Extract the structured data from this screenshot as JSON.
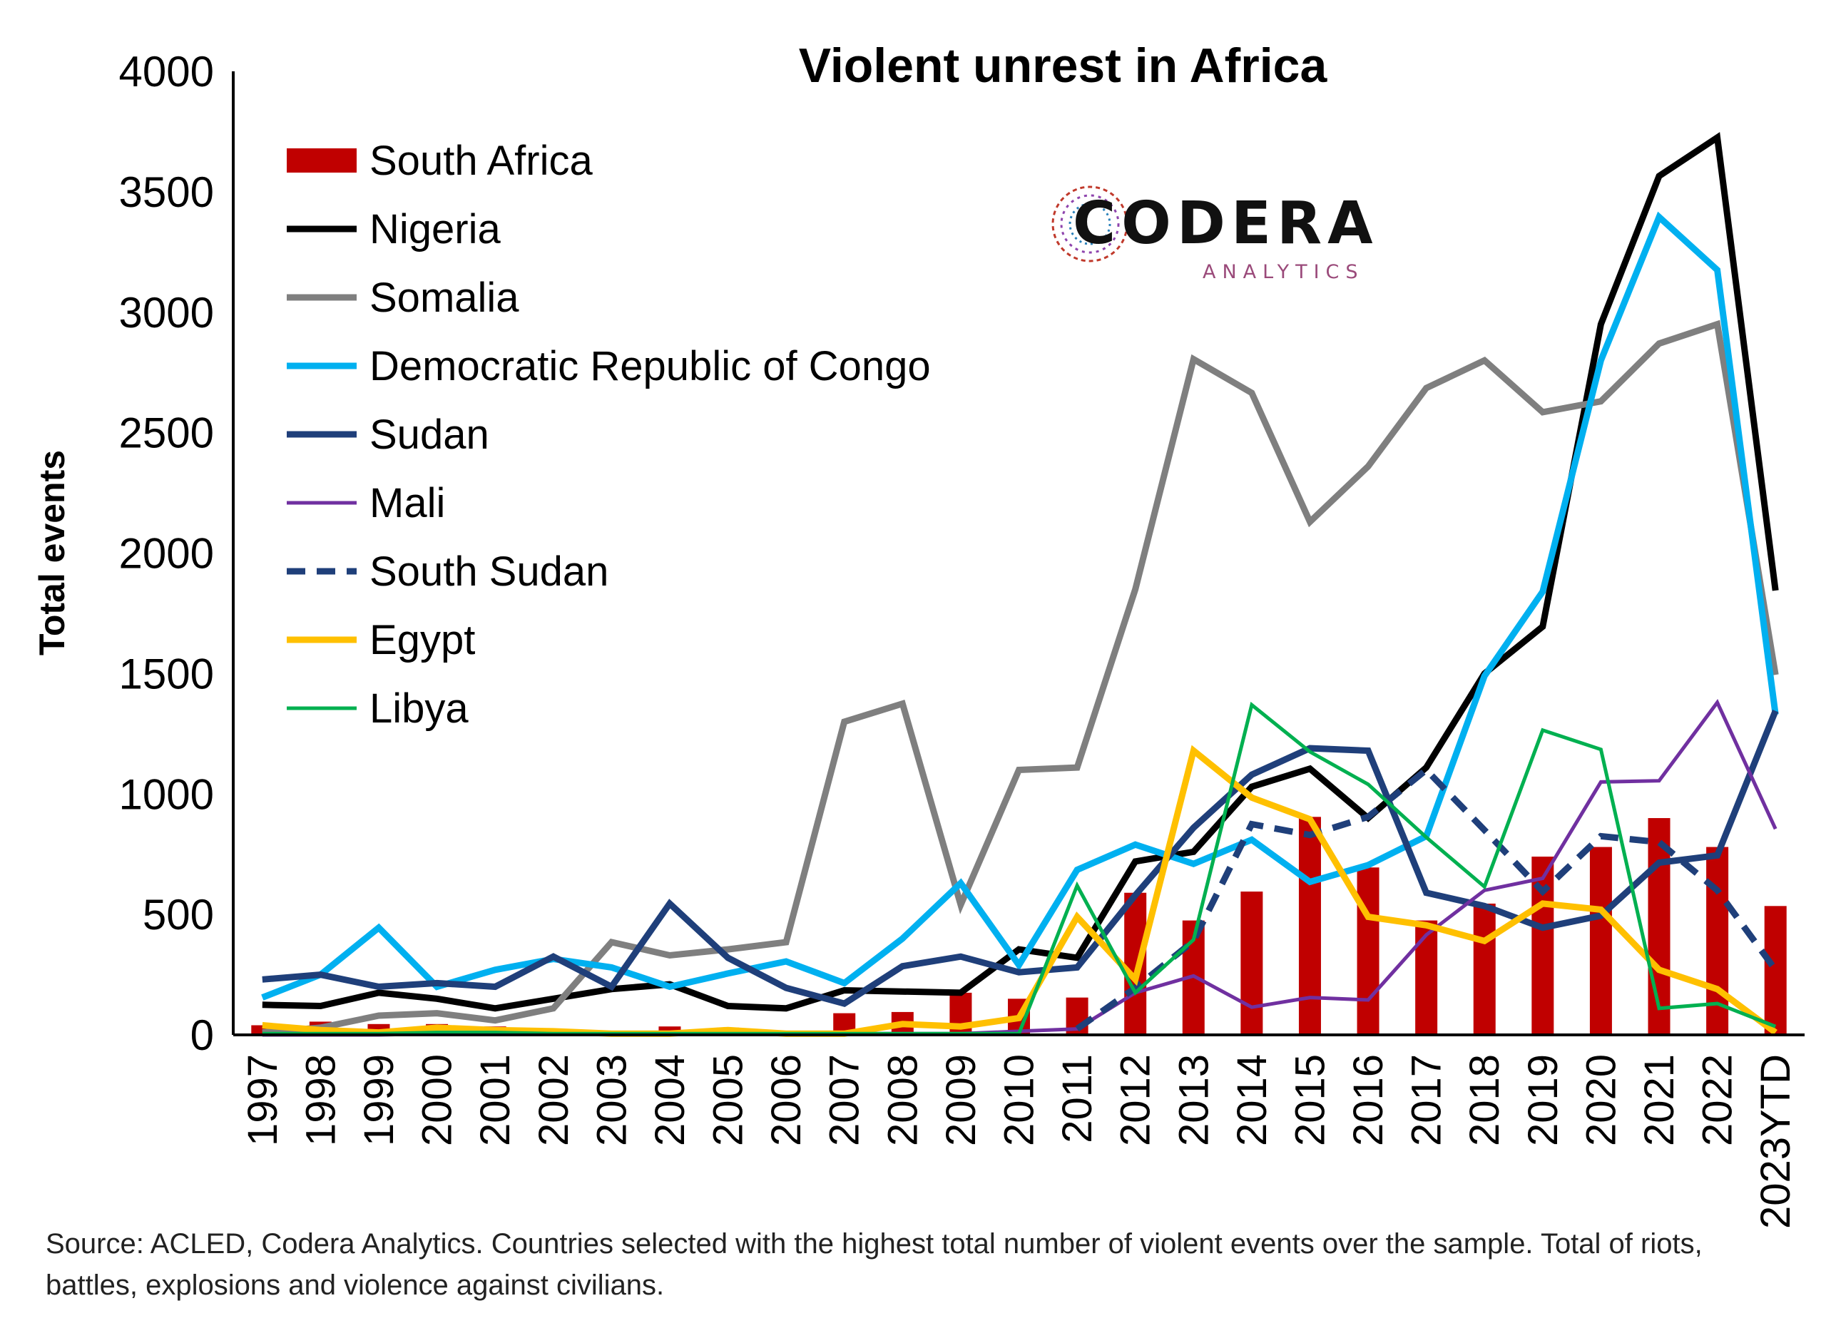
{
  "chart_data": {
    "type": "bar",
    "title": "Violent unrest in Africa",
    "ylabel": "Total events",
    "xlabel": "",
    "ylim": [
      0,
      4000
    ],
    "yticks": [
      0,
      500,
      1000,
      1500,
      2000,
      2500,
      3000,
      3500,
      4000
    ],
    "grid": false,
    "legend_position": "top-left",
    "categories": [
      "1997",
      "1998",
      "1999",
      "2000",
      "2001",
      "2002",
      "2003",
      "2004",
      "2005",
      "2006",
      "2007",
      "2008",
      "2009",
      "2010",
      "2011",
      "2012",
      "2013",
      "2014",
      "2015",
      "2016",
      "2017",
      "2018",
      "2019",
      "2020",
      "2021",
      "2022",
      "2023YTD"
    ],
    "series": [
      {
        "name": "South Africa",
        "type": "bar",
        "color": "#c00000",
        "style": "bar",
        "values": [
          40,
          55,
          45,
          45,
          35,
          25,
          10,
          35,
          30,
          5,
          90,
          95,
          175,
          150,
          155,
          590,
          475,
          595,
          905,
          695,
          475,
          545,
          740,
          780,
          900,
          780,
          535
        ]
      },
      {
        "name": "Nigeria",
        "type": "line",
        "color": "#000000",
        "style": "solid",
        "width": 9,
        "values": [
          125,
          120,
          175,
          150,
          110,
          150,
          190,
          210,
          120,
          110,
          185,
          180,
          175,
          355,
          320,
          720,
          760,
          1030,
          1105,
          900,
          1110,
          1500,
          1695,
          2950,
          3565,
          3725,
          1845
        ]
      },
      {
        "name": "Somalia",
        "type": "line",
        "color": "#7f7f7f",
        "style": "solid",
        "width": 9,
        "values": [
          10,
          30,
          80,
          90,
          60,
          110,
          385,
          330,
          355,
          385,
          1300,
          1375,
          540,
          1100,
          1110,
          1850,
          2805,
          2665,
          2130,
          2360,
          2685,
          2800,
          2585,
          2630,
          2870,
          2950,
          1495
        ]
      },
      {
        "name": "Democratic Republic of Congo",
        "type": "line",
        "color": "#00b0f0",
        "style": "solid",
        "width": 9,
        "values": [
          155,
          250,
          445,
          200,
          270,
          315,
          280,
          200,
          255,
          305,
          215,
          400,
          630,
          290,
          685,
          790,
          710,
          810,
          635,
          705,
          825,
          1490,
          1840,
          2800,
          3395,
          3175,
          1330
        ]
      },
      {
        "name": "Sudan",
        "type": "line",
        "color": "#1f3f7a",
        "style": "solid",
        "width": 9,
        "values": [
          230,
          250,
          200,
          215,
          200,
          325,
          200,
          545,
          320,
          195,
          130,
          285,
          325,
          260,
          280,
          580,
          860,
          1080,
          1190,
          1180,
          590,
          535,
          445,
          495,
          715,
          745,
          1345
        ]
      },
      {
        "name": "Mali",
        "type": "line",
        "color": "#7030a0",
        "style": "solid",
        "width": 5,
        "values": [
          0,
          0,
          0,
          5,
          5,
          5,
          5,
          5,
          5,
          5,
          5,
          5,
          5,
          15,
          25,
          175,
          245,
          115,
          155,
          145,
          415,
          600,
          650,
          1050,
          1055,
          1380,
          855
        ]
      },
      {
        "name": "South Sudan",
        "type": "line",
        "color": "#1f3f7a",
        "style": "dashed",
        "width": 9,
        "values": [
          null,
          null,
          null,
          null,
          null,
          null,
          null,
          null,
          null,
          null,
          null,
          null,
          null,
          null,
          25,
          195,
          390,
          875,
          830,
          905,
          1100,
          850,
          595,
          825,
          800,
          600,
          270
        ]
      },
      {
        "name": "Egypt",
        "type": "line",
        "color": "#ffc000",
        "style": "solid",
        "width": 9,
        "values": [
          40,
          20,
          10,
          30,
          20,
          15,
          5,
          5,
          20,
          5,
          5,
          45,
          35,
          70,
          490,
          230,
          1180,
          985,
          895,
          490,
          455,
          390,
          545,
          520,
          270,
          190,
          10
        ]
      },
      {
        "name": "Libya",
        "type": "line",
        "color": "#00b050",
        "style": "solid",
        "width": 5,
        "values": [
          5,
          5,
          5,
          10,
          10,
          5,
          5,
          5,
          5,
          5,
          5,
          5,
          5,
          5,
          620,
          175,
          395,
          1370,
          1175,
          1040,
          820,
          615,
          1265,
          1185,
          110,
          130,
          35
        ]
      }
    ]
  },
  "logo": {
    "word": "CODERA",
    "sub": "ANALYTICS"
  },
  "source_note": "Source: ACLED, Codera Analytics. Countries selected with the highest total number of violent events over the sample. Total of riots, battles, explosions and violence against civilians."
}
